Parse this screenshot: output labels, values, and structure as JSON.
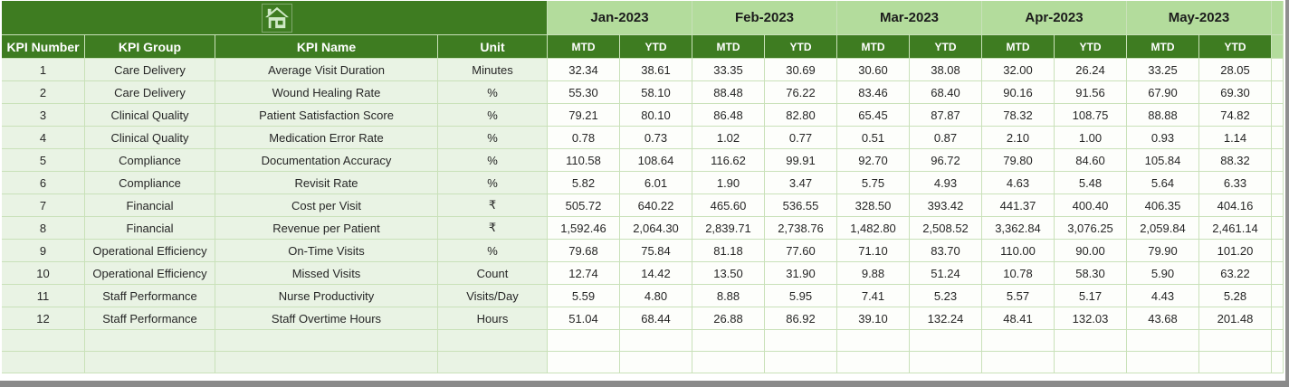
{
  "header": {
    "home_icon": "home-icon",
    "columns": [
      "KPI Number",
      "KPI Group",
      "KPI Name",
      "Unit"
    ],
    "months": [
      "Jan-2023",
      "Feb-2023",
      "Mar-2023",
      "Apr-2023",
      "May-2023"
    ],
    "sub_headers": [
      "MTD",
      "YTD"
    ]
  },
  "rows": [
    {
      "number": "1",
      "group": "Care Delivery",
      "name": "Average Visit Duration",
      "unit": "Minutes",
      "values": [
        "32.34",
        "38.61",
        "33.35",
        "30.69",
        "30.60",
        "38.08",
        "32.00",
        "26.24",
        "33.25",
        "28.05"
      ]
    },
    {
      "number": "2",
      "group": "Care Delivery",
      "name": "Wound Healing Rate",
      "unit": "%",
      "values": [
        "55.30",
        "58.10",
        "88.48",
        "76.22",
        "83.46",
        "68.40",
        "90.16",
        "91.56",
        "67.90",
        "69.30"
      ]
    },
    {
      "number": "3",
      "group": "Clinical Quality",
      "name": "Patient Satisfaction Score",
      "unit": "%",
      "values": [
        "79.21",
        "80.10",
        "86.48",
        "82.80",
        "65.45",
        "87.87",
        "78.32",
        "108.75",
        "88.88",
        "74.82"
      ]
    },
    {
      "number": "4",
      "group": "Clinical Quality",
      "name": "Medication Error Rate",
      "unit": "%",
      "values": [
        "0.78",
        "0.73",
        "1.02",
        "0.77",
        "0.51",
        "0.87",
        "2.10",
        "1.00",
        "0.93",
        "1.14"
      ]
    },
    {
      "number": "5",
      "group": "Compliance",
      "name": "Documentation Accuracy",
      "unit": "%",
      "values": [
        "110.58",
        "108.64",
        "116.62",
        "99.91",
        "92.70",
        "96.72",
        "79.80",
        "84.60",
        "105.84",
        "88.32"
      ]
    },
    {
      "number": "6",
      "group": "Compliance",
      "name": "Revisit Rate",
      "unit": "%",
      "values": [
        "5.82",
        "6.01",
        "1.90",
        "3.47",
        "5.75",
        "4.93",
        "4.63",
        "5.48",
        "5.64",
        "6.33"
      ]
    },
    {
      "number": "7",
      "group": "Financial",
      "name": "Cost per Visit",
      "unit": "₹",
      "values": [
        "505.72",
        "640.22",
        "465.60",
        "536.55",
        "328.50",
        "393.42",
        "441.37",
        "400.40",
        "406.35",
        "404.16"
      ]
    },
    {
      "number": "8",
      "group": "Financial",
      "name": "Revenue per Patient",
      "unit": "₹",
      "values": [
        "1,592.46",
        "2,064.30",
        "2,839.71",
        "2,738.76",
        "1,482.80",
        "2,508.52",
        "3,362.84",
        "3,076.25",
        "2,059.84",
        "2,461.14"
      ]
    },
    {
      "number": "9",
      "group": "Operational Efficiency",
      "name": "On-Time Visits",
      "unit": "%",
      "values": [
        "79.68",
        "75.84",
        "81.18",
        "77.60",
        "71.10",
        "83.70",
        "110.00",
        "90.00",
        "79.90",
        "101.20"
      ]
    },
    {
      "number": "10",
      "group": "Operational Efficiency",
      "name": "Missed Visits",
      "unit": "Count",
      "values": [
        "12.74",
        "14.42",
        "13.50",
        "31.90",
        "9.88",
        "51.24",
        "10.78",
        "58.30",
        "5.90",
        "63.22"
      ]
    },
    {
      "number": "11",
      "group": "Staff Performance",
      "name": "Nurse Productivity",
      "unit": "Visits/Day",
      "values": [
        "5.59",
        "4.80",
        "8.88",
        "5.95",
        "7.41",
        "5.23",
        "5.57",
        "5.17",
        "4.43",
        "5.28"
      ]
    },
    {
      "number": "12",
      "group": "Staff Performance",
      "name": "Staff Overtime Hours",
      "unit": "Hours",
      "values": [
        "51.04",
        "68.44",
        "26.88",
        "86.92",
        "39.10",
        "132.24",
        "48.41",
        "132.03",
        "43.68",
        "201.48"
      ]
    }
  ],
  "empty_rows": 2,
  "colors": {
    "header_dark_green": "#3e7c21",
    "month_band_green": "#b3dc9c",
    "left_column_fill": "#e9f3e4",
    "data_cell_fill": "#fdfefb",
    "gridline_green": "#c9e1b9",
    "window_edge_gray": "#8a8a8a",
    "header_text_white": "#ffffff",
    "body_text": "#262626"
  }
}
